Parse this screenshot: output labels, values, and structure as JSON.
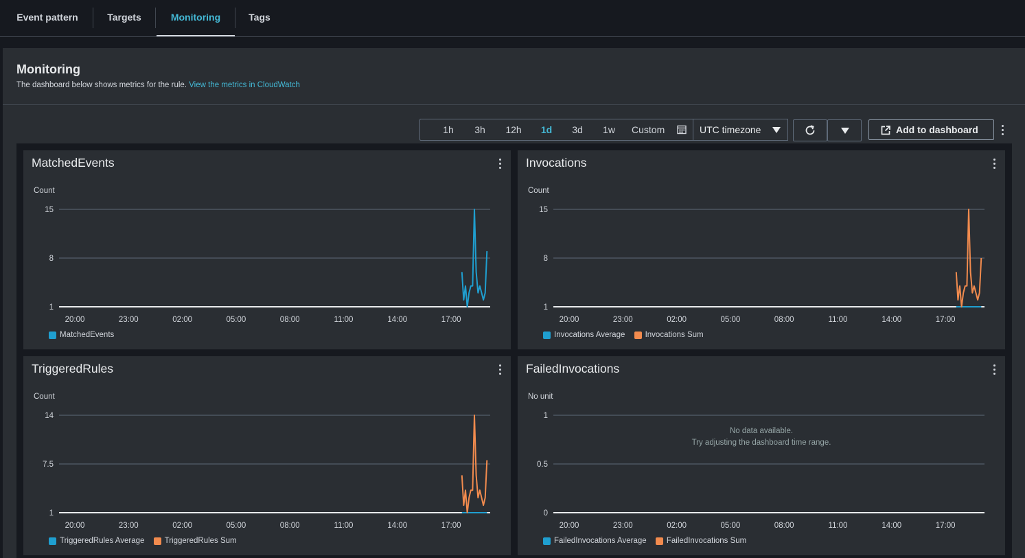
{
  "tabs": [
    {
      "label": "Event pattern",
      "active": false
    },
    {
      "label": "Targets",
      "active": false
    },
    {
      "label": "Monitoring",
      "active": true
    },
    {
      "label": "Tags",
      "active": false
    }
  ],
  "monitoring": {
    "title": "Monitoring",
    "description": "The dashboard below shows metrics for the rule.",
    "link": "View the metrics in CloudWatch"
  },
  "toolbar": {
    "ranges": [
      "1h",
      "3h",
      "12h",
      "1d",
      "3d",
      "1w"
    ],
    "active_range": "1d",
    "custom_label": "Custom",
    "timezone": "UTC timezone",
    "add_label": "Add to dashboard"
  },
  "colors": {
    "blue": "#1f9fd0",
    "orange": "#f28b4e",
    "accent": "#44b9d6"
  },
  "widgets": {
    "matched": {
      "title": "MatchedEvents",
      "unit": "Count",
      "legend": [
        "MatchedEvents"
      ]
    },
    "invocations": {
      "title": "Invocations",
      "unit": "Count",
      "legend": [
        "Invocations Average",
        "Invocations Sum"
      ]
    },
    "triggered": {
      "title": "TriggeredRules",
      "unit": "Count",
      "legend": [
        "TriggeredRules Average",
        "TriggeredRules Sum"
      ]
    },
    "failed": {
      "title": "FailedInvocations",
      "unit": "No unit",
      "legend": [
        "FailedInvocations Average",
        "FailedInvocations Sum"
      ],
      "nodata_1": "No data available.",
      "nodata_2": "Try adjusting the dashboard time range."
    }
  },
  "chart_data": [
    {
      "type": "line",
      "title": "MatchedEvents",
      "ylabel": "Count",
      "x_ticks": [
        "20:00",
        "23:00",
        "02:00",
        "05:00",
        "08:00",
        "11:00",
        "14:00",
        "17:00"
      ],
      "y_ticks": [
        1,
        8,
        15
      ],
      "ylim": [
        1,
        15
      ],
      "series": [
        {
          "name": "MatchedEvents",
          "color": "blue",
          "x": [
            17.6,
            17.7,
            17.8,
            17.9,
            18.0,
            18.1,
            18.2,
            18.3,
            18.4,
            18.5,
            18.6,
            18.7,
            18.8,
            18.9,
            19.0
          ],
          "y": [
            6,
            2,
            4,
            1,
            3,
            4,
            4,
            15,
            6,
            3,
            4,
            3,
            2,
            3,
            9
          ]
        }
      ]
    },
    {
      "type": "line",
      "title": "Invocations",
      "ylabel": "Count",
      "x_ticks": [
        "20:00",
        "23:00",
        "02:00",
        "05:00",
        "08:00",
        "11:00",
        "14:00",
        "17:00"
      ],
      "y_ticks": [
        1,
        8,
        15
      ],
      "ylim": [
        1,
        15
      ],
      "series": [
        {
          "name": "Invocations Average",
          "color": "blue",
          "x": [
            17.6,
            17.8,
            18.0,
            18.2,
            18.4,
            18.6,
            18.8,
            19.0
          ],
          "y": [
            1,
            1,
            1,
            1,
            1,
            1,
            1,
            1
          ]
        },
        {
          "name": "Invocations Sum",
          "color": "orange",
          "x": [
            17.6,
            17.7,
            17.8,
            17.9,
            18.0,
            18.1,
            18.2,
            18.3,
            18.4,
            18.5,
            18.6,
            18.7,
            18.8,
            18.9,
            19.0
          ],
          "y": [
            6,
            2,
            4,
            1,
            3,
            4,
            4,
            15,
            6,
            3,
            4,
            3,
            2,
            3,
            8
          ]
        }
      ]
    },
    {
      "type": "line",
      "title": "TriggeredRules",
      "ylabel": "Count",
      "x_ticks": [
        "20:00",
        "23:00",
        "02:00",
        "05:00",
        "08:00",
        "11:00",
        "14:00",
        "17:00"
      ],
      "y_ticks": [
        1,
        7.5,
        14
      ],
      "ylim": [
        1,
        14
      ],
      "series": [
        {
          "name": "TriggeredRules Average",
          "color": "blue",
          "x": [
            17.6,
            17.8,
            18.0,
            18.2,
            18.4,
            18.6,
            18.8,
            19.0
          ],
          "y": [
            1,
            1,
            1,
            1,
            1,
            1,
            1,
            1
          ]
        },
        {
          "name": "TriggeredRules Sum",
          "color": "orange",
          "x": [
            17.6,
            17.7,
            17.8,
            17.9,
            18.0,
            18.1,
            18.2,
            18.3,
            18.4,
            18.5,
            18.6,
            18.7,
            18.8,
            18.9,
            19.0
          ],
          "y": [
            6,
            2,
            4,
            1,
            3,
            4,
            4,
            14,
            6,
            3,
            4,
            3,
            2,
            3,
            8
          ]
        }
      ]
    },
    {
      "type": "line",
      "title": "FailedInvocations",
      "ylabel": "No unit",
      "x_ticks": [
        "20:00",
        "23:00",
        "02:00",
        "05:00",
        "08:00",
        "11:00",
        "14:00",
        "17:00"
      ],
      "y_ticks": [
        0,
        0.5,
        1
      ],
      "ylim": [
        0,
        1
      ],
      "series": []
    }
  ]
}
